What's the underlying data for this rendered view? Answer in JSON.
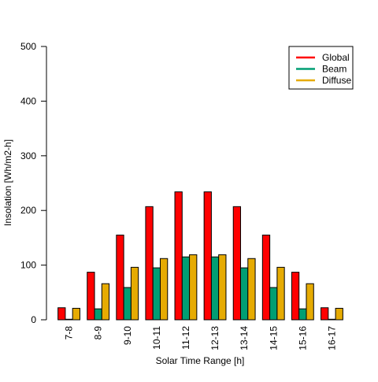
{
  "chart_data": {
    "type": "bar",
    "xlabel": "Solar Time Range [h]",
    "ylabel": "Insolation [Wh/m2-h]",
    "ylim": [
      0,
      500
    ],
    "yticks": [
      0,
      100,
      200,
      300,
      400,
      500
    ],
    "categories": [
      "7-8",
      "8-9",
      "9-10",
      "10-11",
      "11-12",
      "12-13",
      "13-14",
      "14-15",
      "15-16",
      "16-17"
    ],
    "series": [
      {
        "name": "Global",
        "color": "#ff0000",
        "values": [
          22,
          87,
          155,
          207,
          234,
          234,
          207,
          155,
          87,
          22
        ]
      },
      {
        "name": "Beam",
        "color": "#009e73",
        "values": [
          1,
          20,
          59,
          95,
          115,
          115,
          95,
          59,
          20,
          1
        ]
      },
      {
        "name": "Diffuse",
        "color": "#e6ab02",
        "values": [
          21,
          66,
          96,
          112,
          119,
          119,
          112,
          96,
          66,
          21
        ]
      }
    ],
    "legend_position": "top-right",
    "grid": false
  }
}
